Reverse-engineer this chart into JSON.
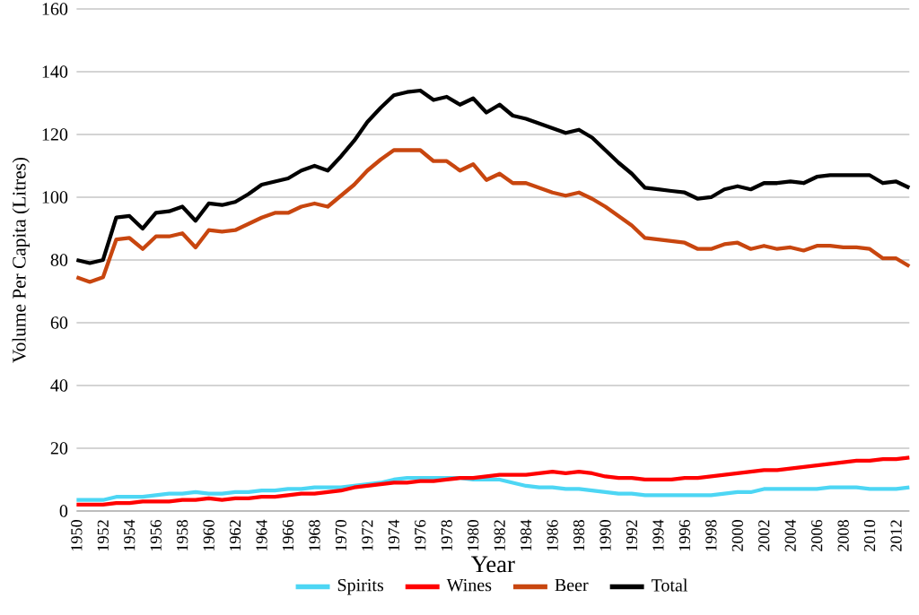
{
  "chart_data": {
    "type": "line",
    "xlabel": "Year",
    "ylabel": "Volume Per Capita (Litres)",
    "x": [
      1950,
      1951,
      1952,
      1953,
      1954,
      1955,
      1956,
      1957,
      1958,
      1959,
      1960,
      1961,
      1962,
      1963,
      1964,
      1965,
      1966,
      1967,
      1968,
      1969,
      1970,
      1971,
      1972,
      1973,
      1974,
      1975,
      1976,
      1977,
      1978,
      1979,
      1980,
      1981,
      1982,
      1983,
      1984,
      1985,
      1986,
      1987,
      1988,
      1989,
      1990,
      1991,
      1992,
      1993,
      1994,
      1995,
      1996,
      1997,
      1998,
      1999,
      2000,
      2001,
      2002,
      2003,
      2004,
      2005,
      2006,
      2007,
      2008,
      2009,
      2010,
      2011,
      2012,
      2013
    ],
    "xlim": [
      1950,
      2013
    ],
    "xticks": [
      1950,
      1952,
      1954,
      1956,
      1958,
      1960,
      1962,
      1964,
      1966,
      1968,
      1970,
      1972,
      1974,
      1976,
      1978,
      1980,
      1982,
      1984,
      1986,
      1988,
      1990,
      1992,
      1994,
      1996,
      1998,
      2000,
      2002,
      2004,
      2006,
      2008,
      2010,
      2012
    ],
    "ylim": [
      0,
      160
    ],
    "yticks": [
      0,
      20,
      40,
      60,
      80,
      100,
      120,
      140,
      160
    ],
    "grid": "y",
    "legend": "bottom",
    "marker": "none",
    "line_style": "solid",
    "series": [
      {
        "name": "Spirits",
        "color": "#4dd6f4",
        "values": [
          3.5,
          3.5,
          3.5,
          4.5,
          4.5,
          4.5,
          5,
          5.5,
          5.5,
          6,
          5.5,
          5.5,
          6,
          6,
          6.5,
          6.5,
          7,
          7,
          7.5,
          7.5,
          7.5,
          8,
          8.5,
          9,
          10,
          10.5,
          10.5,
          10.5,
          10.5,
          10.5,
          10,
          10,
          10,
          9,
          8,
          7.5,
          7.5,
          7,
          7,
          6.5,
          6,
          5.5,
          5.5,
          5,
          5,
          5,
          5,
          5,
          5,
          5.5,
          6,
          6,
          7,
          7,
          7,
          7,
          7,
          7.5,
          7.5,
          7.5,
          7,
          7,
          7,
          7.5
        ]
      },
      {
        "name": "Wines",
        "color": "#ff0000",
        "values": [
          2,
          2,
          2,
          2.5,
          2.5,
          3,
          3,
          3,
          3.5,
          3.5,
          4,
          3.5,
          4,
          4,
          4.5,
          4.5,
          5,
          5.5,
          5.5,
          6,
          6.5,
          7.5,
          8,
          8.5,
          9,
          9,
          9.5,
          9.5,
          10,
          10.5,
          10.5,
          11,
          11.5,
          11.5,
          11.5,
          12,
          12.5,
          12,
          12.5,
          12,
          11,
          10.5,
          10.5,
          10,
          10,
          10,
          10.5,
          10.5,
          11,
          11.5,
          12,
          12.5,
          13,
          13,
          13.5,
          14,
          14.5,
          15,
          15.5,
          16,
          16,
          16.5,
          16.5,
          17
        ]
      },
      {
        "name": "Beer",
        "color": "#c8460f",
        "values": [
          74.5,
          73,
          74.5,
          86.5,
          87,
          83.5,
          87.5,
          87.5,
          88.5,
          84,
          89.5,
          89,
          89.5,
          91.5,
          93.5,
          95,
          95,
          97,
          98,
          97,
          100.5,
          104,
          108.5,
          112,
          115,
          115,
          115,
          111.5,
          111.5,
          108.5,
          110.5,
          105.5,
          107.5,
          104.5,
          104.5,
          103,
          101.5,
          100.5,
          101.5,
          99.5,
          97,
          94,
          91,
          87,
          86.5,
          86,
          85.5,
          83.5,
          83.5,
          85,
          85.5,
          83.5,
          84.5,
          83.5,
          84,
          83,
          84.5,
          84.5,
          84,
          84,
          83.5,
          80.5,
          80.5,
          78
        ]
      },
      {
        "name": "Total",
        "color": "#000000",
        "values": [
          80,
          79,
          80,
          93.5,
          94,
          90,
          95,
          95.5,
          97,
          92.5,
          98,
          97.5,
          98.5,
          101,
          104,
          105,
          106,
          108.5,
          110,
          108.5,
          113,
          118,
          124,
          128.5,
          132.5,
          133.5,
          134,
          131,
          132,
          129.5,
          131.5,
          127,
          129.5,
          126,
          125,
          123.5,
          122,
          120.5,
          121.5,
          119,
          115,
          111,
          107.5,
          103,
          102.5,
          102,
          101.5,
          99.5,
          100,
          102.5,
          103.5,
          102.5,
          104.5,
          104.5,
          105,
          104.5,
          106.5,
          107,
          107,
          107,
          107,
          104.5,
          105,
          103
        ]
      }
    ]
  }
}
